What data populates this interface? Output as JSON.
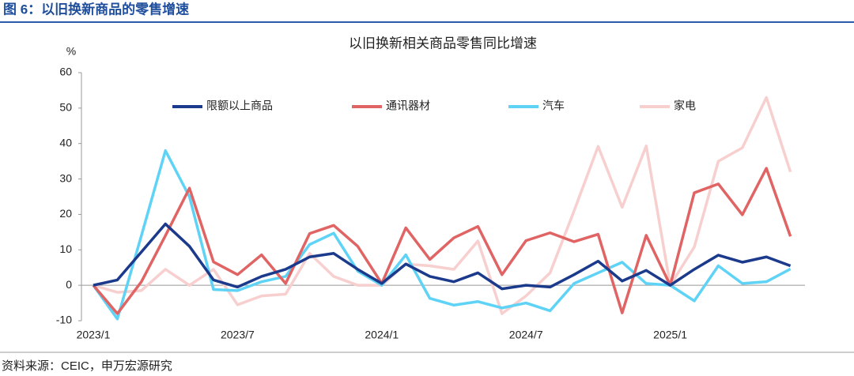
{
  "chart_data": {
    "type": "line",
    "figure_title": "图 6：以旧换新商品的零售增速",
    "title": "以旧换新相关商品零售同比增速",
    "y_label": "%",
    "source": "资料来源：CEIC，申万宏源研究",
    "categories": [
      "2023/1",
      null,
      null,
      null,
      null,
      null,
      "2023/7",
      null,
      null,
      null,
      null,
      null,
      "2024/1",
      null,
      null,
      null,
      null,
      null,
      "2024/7",
      null,
      null,
      null,
      null,
      null,
      "2025/1",
      null,
      null,
      null,
      null,
      null
    ],
    "series": [
      {
        "name": "限额以上商品",
        "color": "#1b3a8c",
        "values": [
          0,
          1.5,
          9.4,
          17.3,
          11,
          1.5,
          -0.5,
          2.5,
          4.5,
          8,
          9,
          4.5,
          0.5,
          6,
          2.5,
          1,
          3.5,
          -1,
          0,
          -0.5,
          3,
          6.8,
          1.2,
          4.2,
          0,
          4.5,
          8.5,
          6.5,
          8,
          5.5
        ]
      },
      {
        "name": "通讯器材",
        "color": "#e06464",
        "values": [
          0,
          -8,
          1,
          14,
          27.4,
          6.6,
          3,
          8.6,
          0.5,
          14.6,
          16.9,
          11,
          0.5,
          16.2,
          7.3,
          13.4,
          16.6,
          3,
          12.6,
          14.8,
          12.3,
          14.4,
          -7.8,
          14.1,
          0,
          26.1,
          28.6,
          19.9,
          33,
          13.8
        ]
      },
      {
        "name": "汽车",
        "color": "#5fd3f5",
        "values": [
          0,
          -9.5,
          14,
          38,
          25,
          -1.2,
          -1.5,
          1,
          2.5,
          11.5,
          14.7,
          4,
          0,
          8.6,
          -3.7,
          -5.6,
          -4.6,
          -6.4,
          -5,
          -7.2,
          0.5,
          3.5,
          6.5,
          0.5,
          0,
          -4.4,
          5.5,
          0.5,
          1,
          4.6
        ]
      },
      {
        "name": "家电",
        "color": "#f8cfcf",
        "values": [
          0,
          -2,
          -1.5,
          4.5,
          0,
          4.5,
          -5.5,
          -3,
          -2.5,
          9,
          2.5,
          0,
          0,
          6,
          5.5,
          4.5,
          12.5,
          -8,
          -3,
          3.5,
          21,
          39.2,
          22,
          39.3,
          0,
          10.8,
          35,
          38.8,
          53,
          32
        ]
      }
    ],
    "ylim": [
      -10,
      60
    ],
    "yticks": [
      60,
      50,
      40,
      30,
      20,
      10,
      0,
      -10
    ],
    "grid": false
  }
}
